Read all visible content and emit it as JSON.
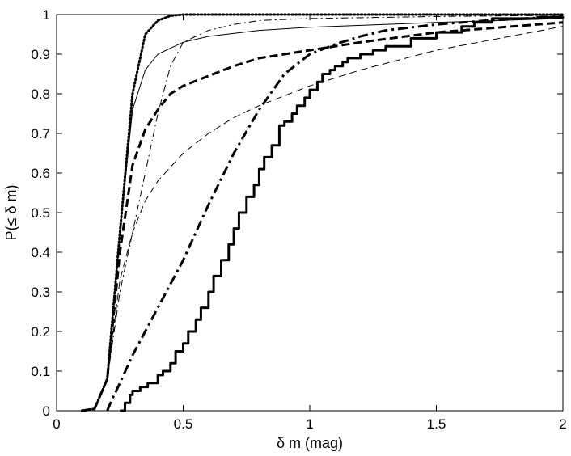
{
  "chart_data": {
    "type": "line",
    "title": "",
    "xlabel": "δ m (mag)",
    "ylabel": "P(≤ δ m)",
    "xlim": [
      0,
      2
    ],
    "ylim": [
      0,
      1
    ],
    "xticks": [
      0,
      0.5,
      1,
      1.5,
      2
    ],
    "xtick_labels": [
      "0",
      "0.5",
      "1",
      "1.5",
      "2"
    ],
    "yticks": [
      0,
      0.1,
      0.2,
      0.3,
      0.4,
      0.5,
      0.6,
      0.7,
      0.8,
      0.9,
      1
    ],
    "ytick_labels": [
      "0",
      "0.1",
      "0.2",
      "0.3",
      "0.4",
      "0.5",
      "0.6",
      "0.7",
      "0.8",
      "0.9",
      "1"
    ],
    "grid": false,
    "legend": "none",
    "series": [
      {
        "style": "dotted-thick",
        "x": [
          0.1,
          0.15,
          0.2,
          0.25,
          0.3,
          0.35,
          0.4,
          0.45,
          0.5,
          0.6,
          0.8,
          1.0,
          1.5,
          2.0
        ],
        "y": [
          0,
          0.005,
          0.08,
          0.45,
          0.8,
          0.95,
          0.985,
          0.997,
          1,
          1,
          1,
          1,
          1,
          1
        ]
      },
      {
        "style": "solid-thin",
        "x": [
          0.1,
          0.15,
          0.2,
          0.25,
          0.3,
          0.35,
          0.4,
          0.45,
          0.5,
          0.6,
          0.8,
          1.0,
          1.5,
          2.0
        ],
        "y": [
          0,
          0.005,
          0.08,
          0.45,
          0.76,
          0.86,
          0.9,
          0.915,
          0.93,
          0.945,
          0.96,
          0.968,
          0.98,
          0.99
        ]
      },
      {
        "style": "dashdot-thin",
        "x": [
          0.1,
          0.15,
          0.2,
          0.25,
          0.3,
          0.35,
          0.4,
          0.45,
          0.5,
          0.6,
          0.7,
          0.8,
          1.0,
          1.5,
          2.0
        ],
        "y": [
          0,
          0.005,
          0.08,
          0.3,
          0.45,
          0.6,
          0.75,
          0.87,
          0.93,
          0.96,
          0.975,
          0.985,
          0.99,
          0.995,
          0.998
        ]
      },
      {
        "style": "dashed-thick",
        "x": [
          0.1,
          0.15,
          0.2,
          0.25,
          0.3,
          0.35,
          0.4,
          0.45,
          0.5,
          0.6,
          0.7,
          0.8,
          1.0,
          1.2,
          1.5,
          2.0
        ],
        "y": [
          0,
          0.005,
          0.08,
          0.4,
          0.62,
          0.71,
          0.76,
          0.8,
          0.82,
          0.845,
          0.87,
          0.89,
          0.91,
          0.93,
          0.955,
          0.98
        ]
      },
      {
        "style": "dashed-thin",
        "x": [
          0.1,
          0.15,
          0.2,
          0.25,
          0.3,
          0.35,
          0.4,
          0.5,
          0.6,
          0.7,
          0.8,
          1.0,
          1.2,
          1.5,
          2.0
        ],
        "y": [
          0,
          0.005,
          0.08,
          0.33,
          0.45,
          0.53,
          0.58,
          0.65,
          0.7,
          0.74,
          0.77,
          0.82,
          0.86,
          0.91,
          0.97
        ]
      },
      {
        "style": "dashdot-thick",
        "x": [
          0.2,
          0.22,
          0.25,
          0.3,
          0.35,
          0.4,
          0.5,
          0.6,
          0.7,
          0.8,
          0.9,
          1.0,
          1.1,
          1.2,
          1.3,
          1.5,
          1.7,
          2.0
        ],
        "y": [
          0,
          0.03,
          0.07,
          0.14,
          0.2,
          0.26,
          0.38,
          0.52,
          0.65,
          0.76,
          0.85,
          0.9,
          0.925,
          0.945,
          0.96,
          0.975,
          0.985,
          0.995
        ]
      },
      {
        "style": "step-thick",
        "x": [
          0.25,
          0.27,
          0.29,
          0.3,
          0.33,
          0.36,
          0.4,
          0.42,
          0.45,
          0.47,
          0.5,
          0.52,
          0.55,
          0.57,
          0.6,
          0.62,
          0.65,
          0.68,
          0.7,
          0.72,
          0.75,
          0.78,
          0.8,
          0.82,
          0.85,
          0.88,
          0.9,
          0.93,
          0.95,
          0.98,
          1.0,
          1.03,
          1.05,
          1.08,
          1.1,
          1.13,
          1.15,
          1.2,
          1.25,
          1.3,
          1.4,
          1.5,
          1.6,
          1.65,
          1.72,
          1.8,
          1.9,
          2.0
        ],
        "y": [
          0,
          0.02,
          0.04,
          0.05,
          0.06,
          0.07,
          0.09,
          0.1,
          0.12,
          0.15,
          0.17,
          0.2,
          0.23,
          0.26,
          0.3,
          0.34,
          0.38,
          0.42,
          0.46,
          0.5,
          0.54,
          0.57,
          0.61,
          0.64,
          0.67,
          0.72,
          0.73,
          0.75,
          0.77,
          0.79,
          0.81,
          0.83,
          0.85,
          0.86,
          0.87,
          0.88,
          0.89,
          0.9,
          0.91,
          0.92,
          0.94,
          0.955,
          0.97,
          0.98,
          0.99,
          0.99,
          0.993,
          0.995
        ]
      }
    ]
  }
}
